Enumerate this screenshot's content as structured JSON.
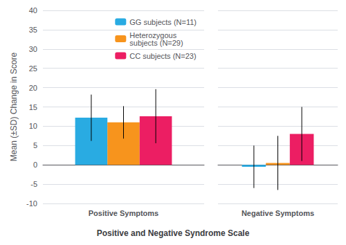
{
  "chart_data": {
    "type": "bar",
    "categories": [
      "Positive Symptoms",
      "Negative Symptoms"
    ],
    "series": [
      {
        "name": "GG subjects (N=11)",
        "color": "#29abe2",
        "values": [
          12.2,
          -0.5
        ],
        "errors": [
          6.0,
          5.5
        ]
      },
      {
        "name": "Heterozygous\nsubjects (N=29)",
        "color": "#f7941d",
        "values": [
          11.0,
          0.5
        ],
        "errors": [
          4.2,
          7.0
        ]
      },
      {
        "name": "CC subjects (N=23)",
        "color": "#ec1e63",
        "values": [
          12.6,
          8.0
        ],
        "errors": [
          7.0,
          7.0
        ]
      }
    ],
    "ylim": [
      -10,
      40
    ],
    "yticks": [
      -10,
      -5,
      0,
      5,
      10,
      15,
      20,
      25,
      30,
      35,
      40
    ],
    "ylabel": "Mean (±SD) Change in Score",
    "xlabel": "Positive and Negative Syndrome Scale",
    "grid": true,
    "legend": "upper right"
  }
}
